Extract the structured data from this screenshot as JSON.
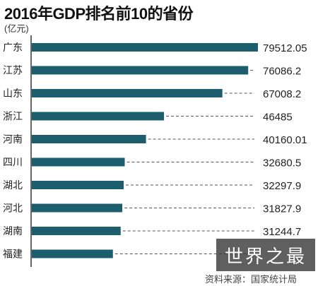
{
  "page": {
    "title": "2016年GDP排名前10的省份",
    "unit": "(亿元)",
    "watermark": "世界之最",
    "source": "资料来源：国家统计局"
  },
  "colors": {
    "bar": "#1c5e6e",
    "dash": "#555555",
    "text": "#222222"
  },
  "chart_data": {
    "type": "bar",
    "orientation": "horizontal",
    "title": "2016年GDP排名前10的省份",
    "xlabel": "",
    "ylabel": "(亿元)",
    "xlim": [
      0,
      79512.05
    ],
    "grid": false,
    "categories": [
      "广东",
      "江苏",
      "山东",
      "浙江",
      "河南",
      "四川",
      "湖北",
      "河北",
      "湖南",
      "福建"
    ],
    "values": [
      79512.05,
      76086.2,
      67008.2,
      46485,
      40160.01,
      32680.5,
      32297.9,
      31827.9,
      31244.7,
      28519.15
    ],
    "value_labels": [
      "79512.05",
      "76086.2",
      "67008.2",
      "46485",
      "40160.01",
      "32680.5",
      "32297.9",
      "31827.9",
      "31244.7",
      ""
    ]
  }
}
